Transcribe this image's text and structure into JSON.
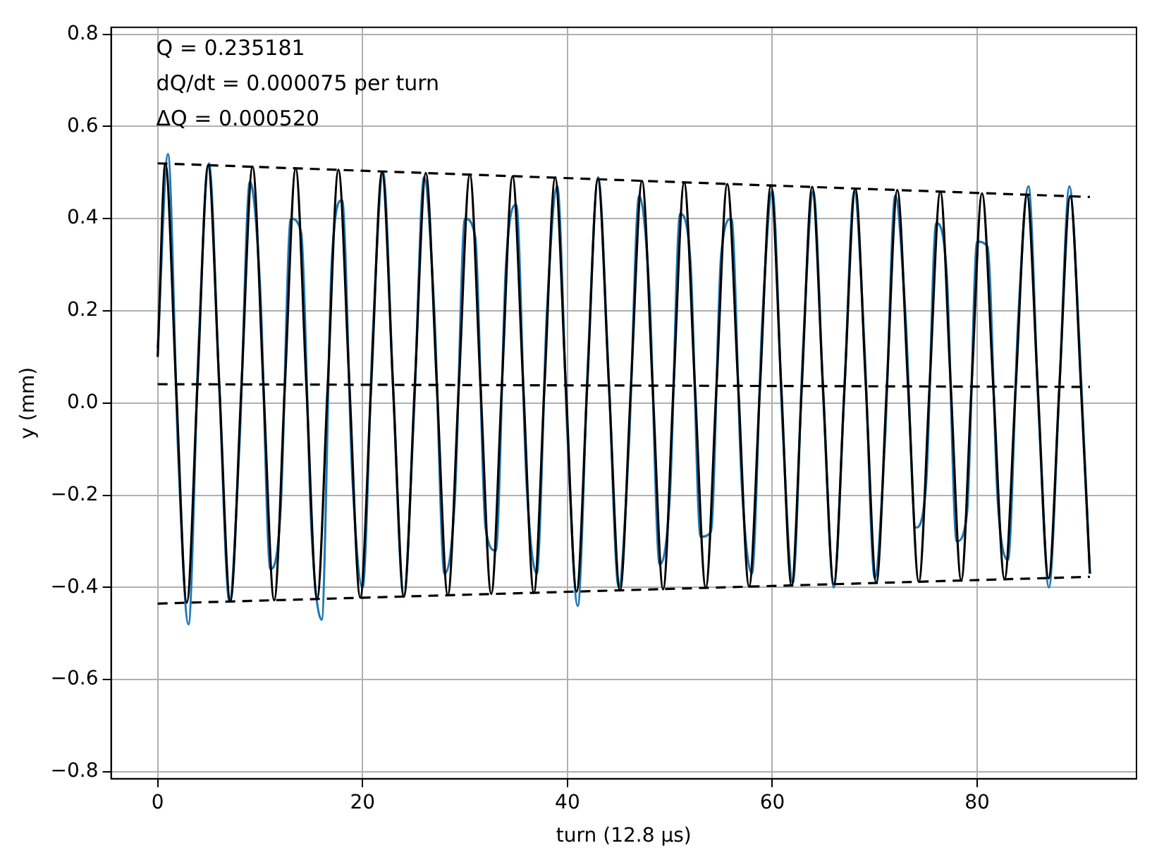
{
  "chart_data": {
    "type": "line",
    "xlabel": "turn (12.8 μs)",
    "ylabel": "y (mm)",
    "annotations": [
      "Q = 0.235181",
      "dQ/dt = 0.000075 per turn",
      "ΔQ = 0.000520"
    ],
    "xlim": [
      -4.55,
      95.55
    ],
    "xticks": [
      0,
      20,
      40,
      60,
      80
    ],
    "ylim": [
      -0.815,
      0.815
    ],
    "yticks": [
      {
        "value": -0.8,
        "label": "−0.8"
      },
      {
        "value": -0.6,
        "label": "−0.6"
      },
      {
        "value": -0.4,
        "label": "−0.4"
      },
      {
        "value": -0.2,
        "label": "−0.2"
      },
      {
        "value": 0,
        "label": "0.0"
      },
      0.2,
      0.4,
      0.6,
      0.8
    ],
    "grid": true,
    "legend": false,
    "marker": "none",
    "series": [
      {
        "type": "line",
        "color": "#1f77b4",
        "line_style": "solid",
        "x": [
          0,
          1,
          2,
          3,
          4,
          5,
          6,
          7,
          8,
          9,
          10,
          11,
          12,
          13,
          14,
          15,
          16,
          17,
          18,
          19,
          20,
          21,
          22,
          23,
          24,
          25,
          26,
          27,
          28,
          29,
          30,
          31,
          32,
          33,
          34,
          35,
          36,
          37,
          38,
          39,
          40,
          41,
          42,
          43,
          44,
          45,
          46,
          47,
          48,
          49,
          50,
          51,
          52,
          53,
          54,
          55,
          56,
          57,
          58,
          59,
          60,
          61,
          62,
          63,
          64,
          65,
          66,
          67,
          68,
          69,
          70,
          71,
          72,
          73,
          74,
          75,
          76,
          77,
          78,
          79,
          80,
          81,
          82,
          83,
          84,
          85,
          86,
          87,
          88,
          89,
          90,
          91
        ],
        "values": [
          0.12,
          0.54,
          -0.11,
          -0.48,
          0.13,
          0.52,
          0.04,
          -0.43,
          -0.08,
          0.48,
          0.25,
          -0.36,
          -0.23,
          0.4,
          0.37,
          -0.27,
          -0.47,
          0.31,
          0.44,
          -0.16,
          -0.4,
          0.15,
          0.5,
          0.02,
          -0.42,
          -0.03,
          0.49,
          0.2,
          -0.37,
          -0.21,
          0.4,
          0.36,
          -0.27,
          -0.32,
          0.3,
          0.43,
          -0.17,
          -0.37,
          0.2,
          0.47,
          -0.07,
          -0.44,
          0.09,
          0.49,
          0.07,
          -0.4,
          -0.09,
          0.45,
          0.24,
          -0.35,
          -0.2,
          0.41,
          0.31,
          -0.29,
          -0.28,
          0.32,
          0.4,
          -0.17,
          -0.37,
          0.17,
          0.46,
          -0.05,
          -0.39,
          0.12,
          0.46,
          0,
          -0.4,
          0.01,
          0.46,
          0.12,
          -0.38,
          -0.08,
          0.45,
          0.19,
          -0.27,
          -0.18,
          0.39,
          0.29,
          -0.3,
          -0.24,
          0.35,
          0.34,
          -0.21,
          -0.34,
          0.18,
          0.47,
          -0.02,
          -0.4,
          0.02,
          0.47,
          0.12,
          -0.37
        ]
      },
      {
        "type": "line",
        "color": "#000000",
        "line_style": "solid",
        "x": [
          0,
          0.75,
          1.79,
          2.84,
          3.88,
          4.92,
          6.01,
          7.09,
          8.18,
          9.26,
          10.31,
          11.37,
          12.42,
          13.47,
          14.51,
          15.56,
          16.6,
          17.64,
          18.71,
          19.77,
          20.84,
          21.9,
          22.97,
          24.04,
          25.1,
          26.17,
          27.25,
          28.32,
          29.4,
          30.47,
          31.51,
          32.56,
          33.6,
          34.64,
          35.68,
          36.72,
          37.76,
          38.8,
          39.84,
          40.89,
          41.93,
          42.97,
          44.05,
          45.13,
          46.2,
          47.28,
          48.31,
          49.34,
          50.36,
          51.39,
          52.44,
          53.5,
          54.55,
          55.6,
          56.67,
          57.73,
          58.8,
          59.86,
          60.87,
          61.88,
          62.88,
          63.89,
          64.94,
          66,
          67.05,
          68.1,
          69.13,
          70.15,
          71.18,
          72.2,
          73.25,
          74.3,
          75.35,
          76.4,
          77.42,
          78.44,
          79.45,
          80.47,
          81.57,
          82.67,
          83.76,
          84.86,
          85.91,
          86.97,
          88.02,
          89.08,
          90.13,
          91
        ],
        "values": [
          0.1,
          0.52,
          0.04,
          -0.433,
          0.04,
          0.516,
          0.04,
          -0.43,
          0.04,
          0.513,
          0.04,
          -0.428,
          0.04,
          0.509,
          0.04,
          -0.425,
          0.04,
          0.506,
          0.04,
          -0.422,
          0.04,
          0.502,
          0.039,
          -0.42,
          0.039,
          0.499,
          0.039,
          -0.417,
          0.039,
          0.496,
          0.039,
          -0.414,
          0.039,
          0.492,
          0.039,
          -0.412,
          0.038,
          0.489,
          0.038,
          -0.409,
          0.038,
          0.486,
          0.038,
          -0.406,
          0.038,
          0.482,
          0.038,
          -0.404,
          0.038,
          0.479,
          0.038,
          -0.401,
          0.037,
          0.475,
          0.037,
          -0.398,
          0.037,
          0.472,
          0.037,
          -0.396,
          0.037,
          0.469,
          0.037,
          -0.393,
          0.037,
          0.465,
          0.036,
          -0.39,
          0.036,
          0.462,
          0.036,
          -0.388,
          0.036,
          0.459,
          0.036,
          -0.385,
          0.036,
          0.455,
          0.036,
          -0.382,
          0.035,
          0.452,
          0.035,
          -0.38,
          0.035,
          0.449,
          0.035,
          -0.37
        ]
      },
      {
        "type": "line",
        "color": "#000000",
        "line_style": "dashed",
        "x": [
          0,
          91
        ],
        "values": [
          0.52,
          0.447
        ]
      },
      {
        "type": "line",
        "color": "#000000",
        "line_style": "dashed",
        "x": [
          0,
          91
        ],
        "values": [
          0.041,
          0.035
        ]
      },
      {
        "type": "line",
        "color": "#000000",
        "line_style": "dashed",
        "x": [
          0,
          91
        ],
        "values": [
          -0.435,
          -0.377
        ]
      }
    ]
  }
}
